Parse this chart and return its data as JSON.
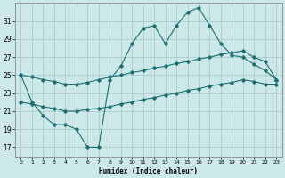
{
  "xlabel": "Humidex (Indice chaleur)",
  "background_color": "#cce8e8",
  "grid_color": "#aacccc",
  "line_color": "#1a7070",
  "xlim": [
    -0.5,
    23.5
  ],
  "ylim": [
    16.0,
    33.0
  ],
  "yticks": [
    17,
    19,
    21,
    23,
    25,
    27,
    29,
    31
  ],
  "xticks": [
    0,
    1,
    2,
    3,
    4,
    5,
    6,
    7,
    8,
    9,
    10,
    11,
    12,
    13,
    14,
    15,
    16,
    17,
    18,
    19,
    20,
    21,
    22,
    23
  ],
  "line1_y": [
    25.0,
    22.0,
    20.5,
    19.5,
    19.5,
    19.0,
    17.0,
    17.0,
    24.5,
    26.0,
    28.5,
    30.2,
    30.5,
    28.5,
    30.5,
    32.0,
    32.5,
    30.5,
    28.5,
    27.2,
    27.0,
    26.2,
    25.5,
    24.5
  ],
  "line2_y": [
    22.0,
    21.8,
    21.5,
    21.3,
    21.0,
    21.0,
    21.2,
    21.3,
    21.5,
    21.8,
    22.0,
    22.3,
    22.5,
    22.8,
    23.0,
    23.3,
    23.5,
    23.8,
    24.0,
    24.2,
    24.5,
    24.3,
    24.0,
    24.0
  ],
  "line3_y": [
    25.0,
    24.8,
    24.5,
    24.3,
    24.0,
    24.0,
    24.2,
    24.5,
    24.8,
    25.0,
    25.3,
    25.5,
    25.8,
    26.0,
    26.3,
    26.5,
    26.8,
    27.0,
    27.3,
    27.5,
    27.7,
    27.0,
    26.5,
    24.5
  ]
}
